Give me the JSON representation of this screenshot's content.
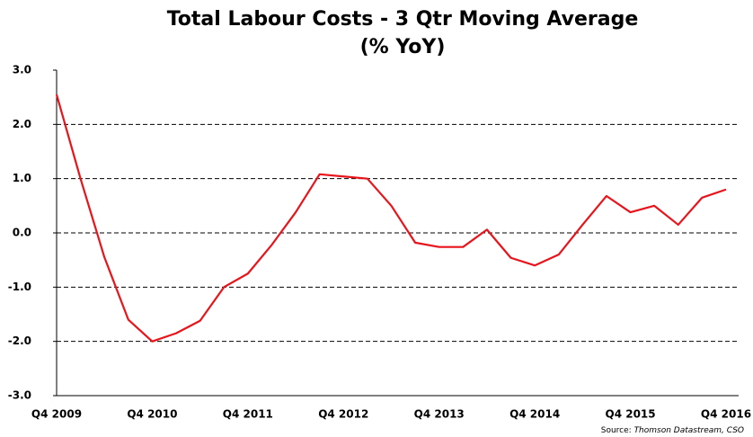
{
  "chart_data": {
    "type": "line",
    "title": [
      "Total Labour Costs - 3 Qtr Moving Average",
      "(% YoY)"
    ],
    "source_label": "Source:",
    "source": "Thomson Datastream, CSO",
    "categories": [
      "Q4 2009",
      null,
      null,
      null,
      "Q4 2010",
      null,
      null,
      null,
      "Q4 2011",
      null,
      null,
      null,
      "Q4 2012",
      null,
      null,
      null,
      "Q4 2013",
      null,
      null,
      null,
      "Q4 2014",
      null,
      null,
      null,
      "Q4 2015",
      null,
      null,
      null,
      "Q4 2016"
    ],
    "series": [
      {
        "color": "#e8141b",
        "values": [
          2.55,
          1.0,
          -0.45,
          -1.6,
          -2.0,
          -1.85,
          -1.62,
          -1.0,
          -0.75,
          -0.22,
          0.38,
          1.08,
          1.04,
          1.0,
          0.5,
          -0.18,
          -0.26,
          -0.26,
          0.06,
          -0.46,
          -0.6,
          -0.4,
          0.15,
          0.68,
          0.38,
          0.5,
          0.15,
          0.65,
          0.8
        ]
      }
    ],
    "ylim": [
      -3,
      3
    ],
    "yticks": [
      {
        "value": -3,
        "label": "-3.0"
      },
      {
        "value": -2,
        "label": "-2.0"
      },
      {
        "value": -1,
        "label": "-1.0"
      },
      {
        "value": 0,
        "label": "0.0"
      },
      {
        "value": 1,
        "label": "1.0"
      },
      {
        "value": 2,
        "label": "2.0"
      },
      {
        "value": 3,
        "label": "3.0"
      }
    ],
    "grid": true
  }
}
